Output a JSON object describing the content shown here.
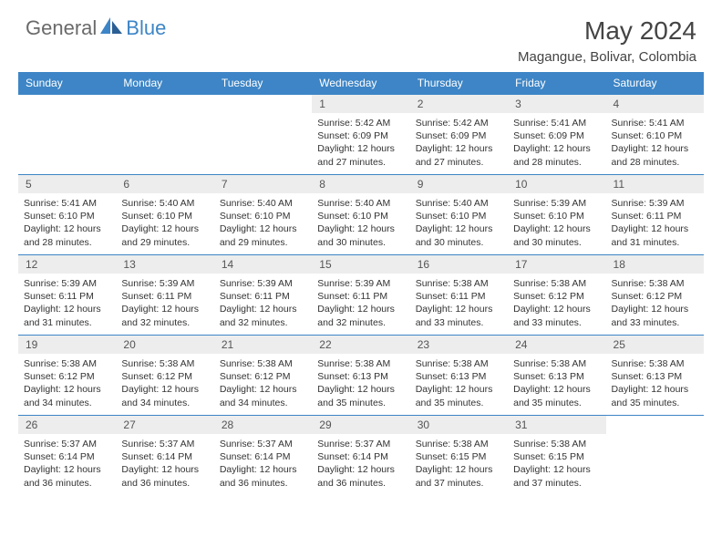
{
  "brand": {
    "general": "General",
    "blue": "Blue",
    "general_color": "#6a6a6a",
    "blue_color": "#3d85c6"
  },
  "title": "May 2024",
  "location": "Magangue, Bolivar, Colombia",
  "style": {
    "header_bg": "#3d85c6",
    "header_text": "#ffffff",
    "daybar_bg": "#ededed",
    "row_border": "#3d85c6",
    "body_bg": "#ffffff",
    "text_color": "#333333",
    "title_fontsize": 28,
    "subtitle_fontsize": 15,
    "dayheader_fontsize": 12,
    "cell_fontsize": 10.5
  },
  "day_headers": [
    "Sunday",
    "Monday",
    "Tuesday",
    "Wednesday",
    "Thursday",
    "Friday",
    "Saturday"
  ],
  "weeks": [
    [
      {
        "empty": true
      },
      {
        "empty": true
      },
      {
        "empty": true
      },
      {
        "num": "1",
        "sunrise": "Sunrise: 5:42 AM",
        "sunset": "Sunset: 6:09 PM",
        "daylight": "Daylight: 12 hours and 27 minutes."
      },
      {
        "num": "2",
        "sunrise": "Sunrise: 5:42 AM",
        "sunset": "Sunset: 6:09 PM",
        "daylight": "Daylight: 12 hours and 27 minutes."
      },
      {
        "num": "3",
        "sunrise": "Sunrise: 5:41 AM",
        "sunset": "Sunset: 6:09 PM",
        "daylight": "Daylight: 12 hours and 28 minutes."
      },
      {
        "num": "4",
        "sunrise": "Sunrise: 5:41 AM",
        "sunset": "Sunset: 6:10 PM",
        "daylight": "Daylight: 12 hours and 28 minutes."
      }
    ],
    [
      {
        "num": "5",
        "sunrise": "Sunrise: 5:41 AM",
        "sunset": "Sunset: 6:10 PM",
        "daylight": "Daylight: 12 hours and 28 minutes."
      },
      {
        "num": "6",
        "sunrise": "Sunrise: 5:40 AM",
        "sunset": "Sunset: 6:10 PM",
        "daylight": "Daylight: 12 hours and 29 minutes."
      },
      {
        "num": "7",
        "sunrise": "Sunrise: 5:40 AM",
        "sunset": "Sunset: 6:10 PM",
        "daylight": "Daylight: 12 hours and 29 minutes."
      },
      {
        "num": "8",
        "sunrise": "Sunrise: 5:40 AM",
        "sunset": "Sunset: 6:10 PM",
        "daylight": "Daylight: 12 hours and 30 minutes."
      },
      {
        "num": "9",
        "sunrise": "Sunrise: 5:40 AM",
        "sunset": "Sunset: 6:10 PM",
        "daylight": "Daylight: 12 hours and 30 minutes."
      },
      {
        "num": "10",
        "sunrise": "Sunrise: 5:39 AM",
        "sunset": "Sunset: 6:10 PM",
        "daylight": "Daylight: 12 hours and 30 minutes."
      },
      {
        "num": "11",
        "sunrise": "Sunrise: 5:39 AM",
        "sunset": "Sunset: 6:11 PM",
        "daylight": "Daylight: 12 hours and 31 minutes."
      }
    ],
    [
      {
        "num": "12",
        "sunrise": "Sunrise: 5:39 AM",
        "sunset": "Sunset: 6:11 PM",
        "daylight": "Daylight: 12 hours and 31 minutes."
      },
      {
        "num": "13",
        "sunrise": "Sunrise: 5:39 AM",
        "sunset": "Sunset: 6:11 PM",
        "daylight": "Daylight: 12 hours and 32 minutes."
      },
      {
        "num": "14",
        "sunrise": "Sunrise: 5:39 AM",
        "sunset": "Sunset: 6:11 PM",
        "daylight": "Daylight: 12 hours and 32 minutes."
      },
      {
        "num": "15",
        "sunrise": "Sunrise: 5:39 AM",
        "sunset": "Sunset: 6:11 PM",
        "daylight": "Daylight: 12 hours and 32 minutes."
      },
      {
        "num": "16",
        "sunrise": "Sunrise: 5:38 AM",
        "sunset": "Sunset: 6:11 PM",
        "daylight": "Daylight: 12 hours and 33 minutes."
      },
      {
        "num": "17",
        "sunrise": "Sunrise: 5:38 AM",
        "sunset": "Sunset: 6:12 PM",
        "daylight": "Daylight: 12 hours and 33 minutes."
      },
      {
        "num": "18",
        "sunrise": "Sunrise: 5:38 AM",
        "sunset": "Sunset: 6:12 PM",
        "daylight": "Daylight: 12 hours and 33 minutes."
      }
    ],
    [
      {
        "num": "19",
        "sunrise": "Sunrise: 5:38 AM",
        "sunset": "Sunset: 6:12 PM",
        "daylight": "Daylight: 12 hours and 34 minutes."
      },
      {
        "num": "20",
        "sunrise": "Sunrise: 5:38 AM",
        "sunset": "Sunset: 6:12 PM",
        "daylight": "Daylight: 12 hours and 34 minutes."
      },
      {
        "num": "21",
        "sunrise": "Sunrise: 5:38 AM",
        "sunset": "Sunset: 6:12 PM",
        "daylight": "Daylight: 12 hours and 34 minutes."
      },
      {
        "num": "22",
        "sunrise": "Sunrise: 5:38 AM",
        "sunset": "Sunset: 6:13 PM",
        "daylight": "Daylight: 12 hours and 35 minutes."
      },
      {
        "num": "23",
        "sunrise": "Sunrise: 5:38 AM",
        "sunset": "Sunset: 6:13 PM",
        "daylight": "Daylight: 12 hours and 35 minutes."
      },
      {
        "num": "24",
        "sunrise": "Sunrise: 5:38 AM",
        "sunset": "Sunset: 6:13 PM",
        "daylight": "Daylight: 12 hours and 35 minutes."
      },
      {
        "num": "25",
        "sunrise": "Sunrise: 5:38 AM",
        "sunset": "Sunset: 6:13 PM",
        "daylight": "Daylight: 12 hours and 35 minutes."
      }
    ],
    [
      {
        "num": "26",
        "sunrise": "Sunrise: 5:37 AM",
        "sunset": "Sunset: 6:14 PM",
        "daylight": "Daylight: 12 hours and 36 minutes."
      },
      {
        "num": "27",
        "sunrise": "Sunrise: 5:37 AM",
        "sunset": "Sunset: 6:14 PM",
        "daylight": "Daylight: 12 hours and 36 minutes."
      },
      {
        "num": "28",
        "sunrise": "Sunrise: 5:37 AM",
        "sunset": "Sunset: 6:14 PM",
        "daylight": "Daylight: 12 hours and 36 minutes."
      },
      {
        "num": "29",
        "sunrise": "Sunrise: 5:37 AM",
        "sunset": "Sunset: 6:14 PM",
        "daylight": "Daylight: 12 hours and 36 minutes."
      },
      {
        "num": "30",
        "sunrise": "Sunrise: 5:38 AM",
        "sunset": "Sunset: 6:15 PM",
        "daylight": "Daylight: 12 hours and 37 minutes."
      },
      {
        "num": "31",
        "sunrise": "Sunrise: 5:38 AM",
        "sunset": "Sunset: 6:15 PM",
        "daylight": "Daylight: 12 hours and 37 minutes."
      },
      {
        "empty": true
      }
    ]
  ]
}
